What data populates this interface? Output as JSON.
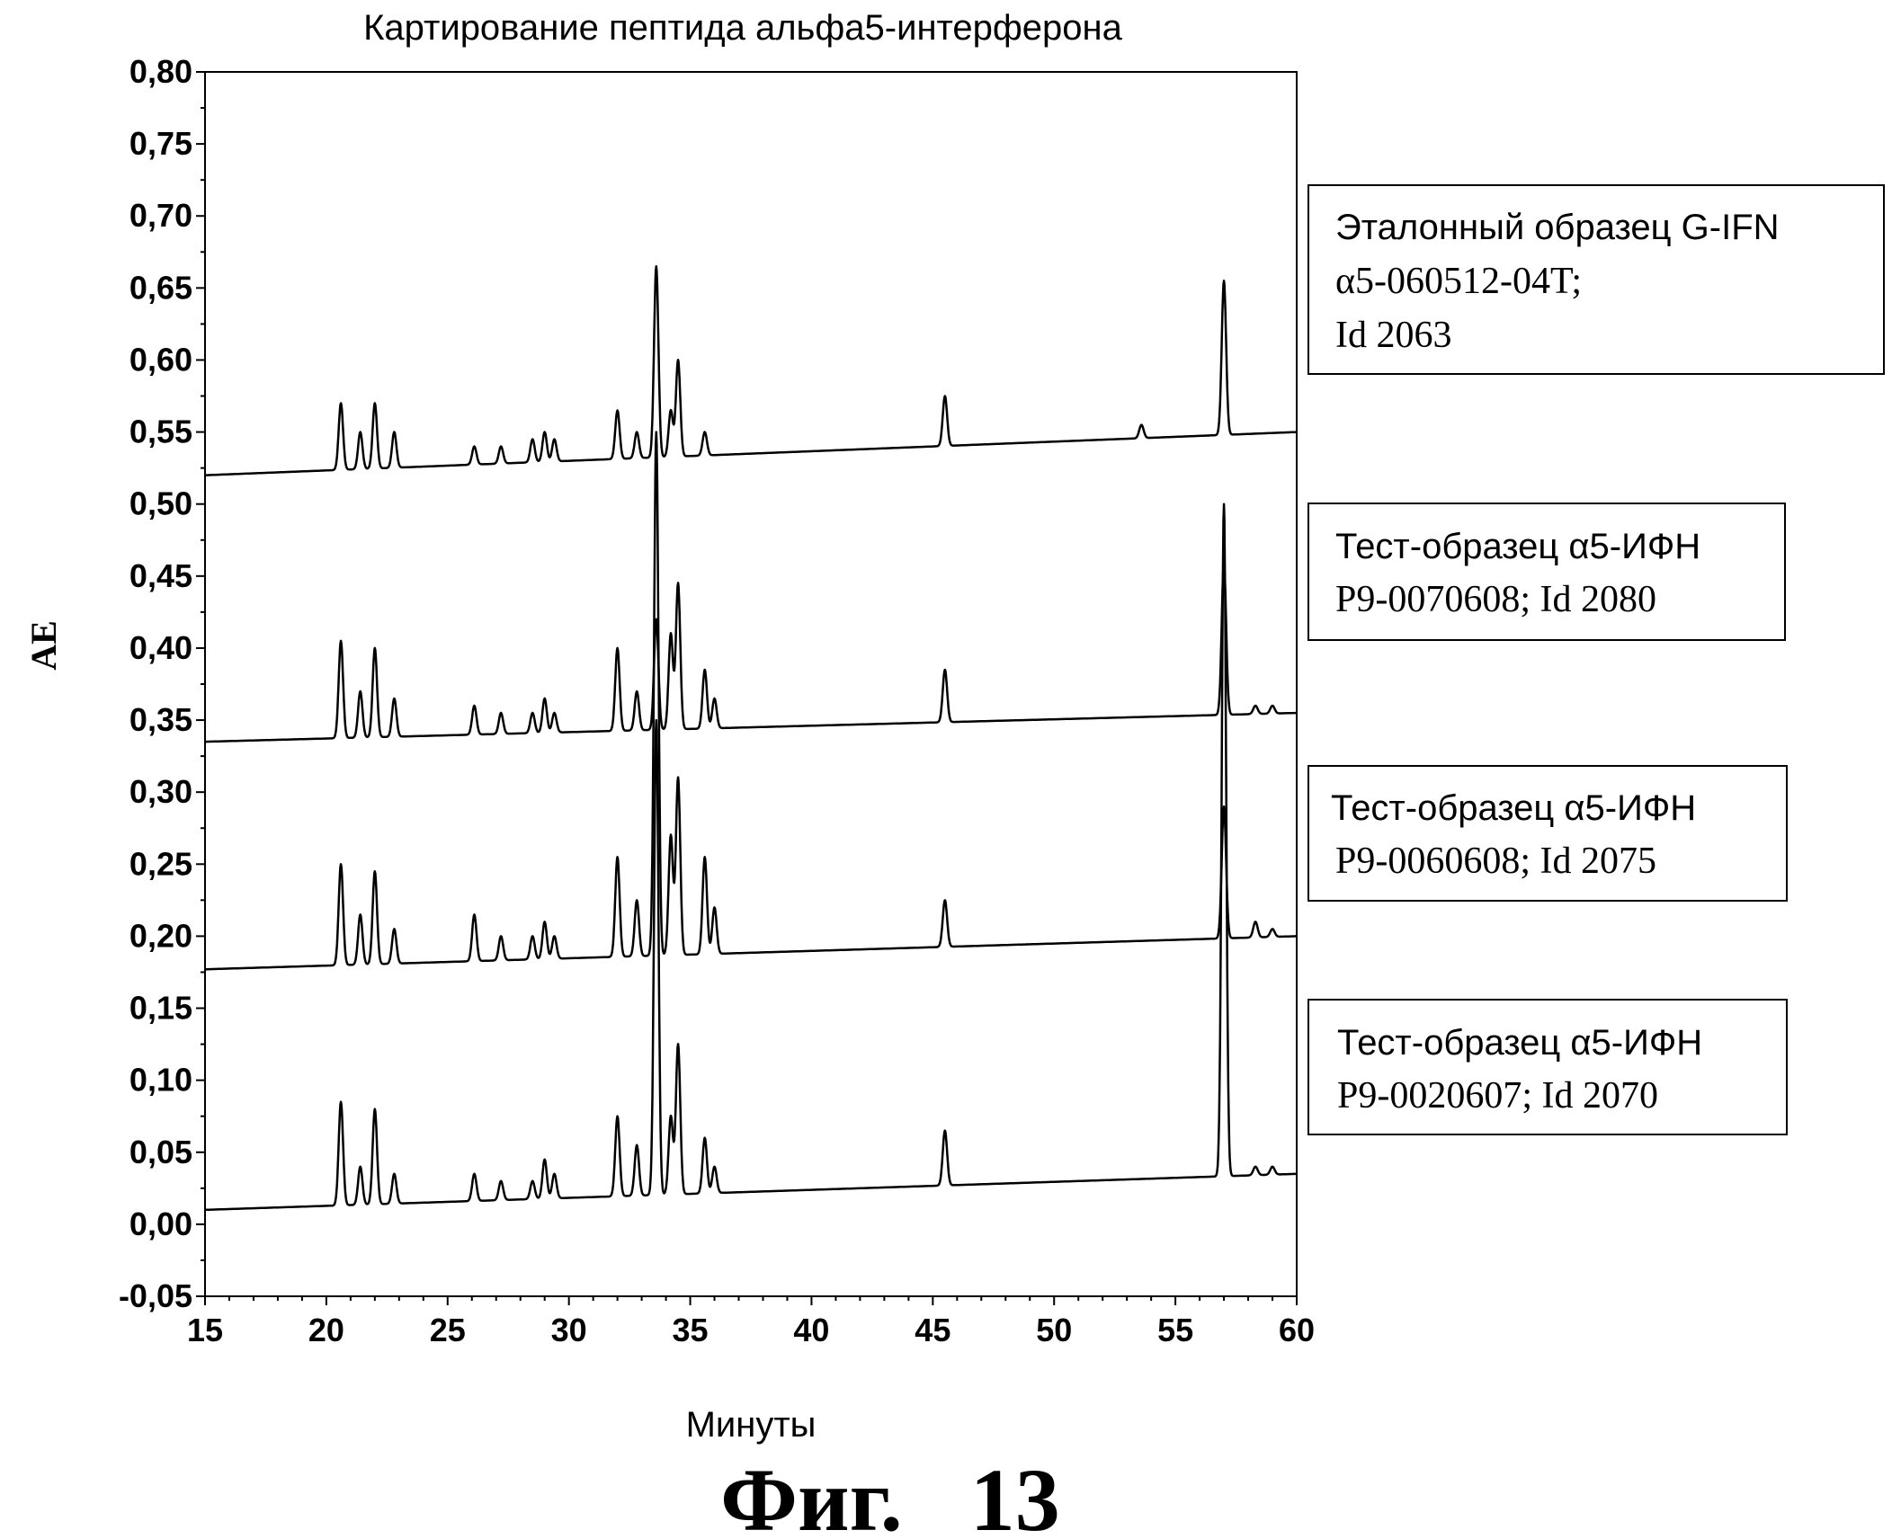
{
  "chart_data": {
    "type": "line",
    "title": "Картирование пептида альфа5-интерферона",
    "xlabel": "Минуты",
    "ylabel": "AE",
    "xlim": [
      15,
      60
    ],
    "ylim": [
      -0.05,
      0.8
    ],
    "x_ticks": [
      "15",
      "20",
      "25",
      "30",
      "35",
      "40",
      "45",
      "50",
      "55",
      "60"
    ],
    "y_ticks": [
      "-0,05",
      "0,00",
      "0,05",
      "0,10",
      "0,15",
      "0,20",
      "0,25",
      "0,30",
      "0,35",
      "0,40",
      "0,45",
      "0,50",
      "0,55",
      "0,60",
      "0,65",
      "0,70",
      "0,75",
      "0,80"
    ],
    "grid": false,
    "legend_placement": "right, one box per trace",
    "series": [
      {
        "name": "Эталонный образец G-IFN α5-060512-04T; Id 2063",
        "legend_lines": [
          "Эталонный образец G-IFN",
          "α5-060512-04T;",
          "Id 2063"
        ],
        "baseline_start": 0.52,
        "baseline_end": 0.55,
        "peaks": [
          [
            20.6,
            0.57
          ],
          [
            21.4,
            0.55
          ],
          [
            22.0,
            0.57
          ],
          [
            22.8,
            0.55
          ],
          [
            26.1,
            0.54
          ],
          [
            27.2,
            0.54
          ],
          [
            28.5,
            0.545
          ],
          [
            29.0,
            0.55
          ],
          [
            29.4,
            0.545
          ],
          [
            32.0,
            0.565
          ],
          [
            32.8,
            0.55
          ],
          [
            33.6,
            0.665
          ],
          [
            34.2,
            0.565
          ],
          [
            34.5,
            0.6
          ],
          [
            35.6,
            0.55
          ],
          [
            45.5,
            0.575
          ],
          [
            53.6,
            0.555
          ],
          [
            57.0,
            0.655
          ]
        ]
      },
      {
        "name": "Тест-образец α5-ИФН P9-0070608; Id 2080",
        "legend_lines": [
          "Тест-образец α5-ИФН",
          "P9-0070608; Id 2080"
        ],
        "baseline_start": 0.335,
        "baseline_end": 0.355,
        "peaks": [
          [
            20.6,
            0.405
          ],
          [
            21.4,
            0.37
          ],
          [
            22.0,
            0.4
          ],
          [
            22.8,
            0.365
          ],
          [
            26.1,
            0.36
          ],
          [
            27.2,
            0.355
          ],
          [
            28.5,
            0.355
          ],
          [
            29.0,
            0.365
          ],
          [
            29.4,
            0.355
          ],
          [
            32.0,
            0.4
          ],
          [
            32.8,
            0.37
          ],
          [
            33.6,
            0.42
          ],
          [
            34.2,
            0.41
          ],
          [
            34.5,
            0.445
          ],
          [
            35.6,
            0.385
          ],
          [
            36.0,
            0.365
          ],
          [
            45.5,
            0.385
          ],
          [
            57.0,
            0.46
          ],
          [
            58.3,
            0.36
          ],
          [
            59.0,
            0.36
          ]
        ]
      },
      {
        "name": "Тест-образец α5-ИФН P9-0060608; Id 2075",
        "legend_lines": [
          "Тест-образец α5-ИФН",
          "P9-0060608; Id 2075"
        ],
        "baseline_start": 0.177,
        "baseline_end": 0.2,
        "peaks": [
          [
            20.6,
            0.25
          ],
          [
            21.4,
            0.215
          ],
          [
            22.0,
            0.245
          ],
          [
            22.8,
            0.205
          ],
          [
            26.1,
            0.215
          ],
          [
            27.2,
            0.2
          ],
          [
            28.5,
            0.2
          ],
          [
            29.0,
            0.21
          ],
          [
            29.4,
            0.2
          ],
          [
            32.0,
            0.255
          ],
          [
            32.8,
            0.225
          ],
          [
            33.6,
            0.55
          ],
          [
            34.2,
            0.27
          ],
          [
            34.5,
            0.31
          ],
          [
            35.6,
            0.255
          ],
          [
            36.0,
            0.22
          ],
          [
            45.5,
            0.225
          ],
          [
            57.0,
            0.29
          ],
          [
            58.3,
            0.21
          ],
          [
            59.0,
            0.205
          ]
        ]
      },
      {
        "name": "Тест-образец α5-ИФН P9-0020607; Id 2070",
        "legend_lines": [
          "Тест-образец α5-ИФН",
          "P9-0020607; Id 2070"
        ],
        "baseline_start": 0.01,
        "baseline_end": 0.035,
        "peaks": [
          [
            20.6,
            0.085
          ],
          [
            21.4,
            0.04
          ],
          [
            22.0,
            0.08
          ],
          [
            22.8,
            0.035
          ],
          [
            26.1,
            0.035
          ],
          [
            27.2,
            0.03
          ],
          [
            28.5,
            0.03
          ],
          [
            29.0,
            0.045
          ],
          [
            29.4,
            0.035
          ],
          [
            32.0,
            0.075
          ],
          [
            32.8,
            0.055
          ],
          [
            33.6,
            0.35
          ],
          [
            34.2,
            0.075
          ],
          [
            34.5,
            0.125
          ],
          [
            35.6,
            0.06
          ],
          [
            36.0,
            0.04
          ],
          [
            45.5,
            0.065
          ],
          [
            57.0,
            0.5
          ],
          [
            58.3,
            0.04
          ],
          [
            59.0,
            0.04
          ]
        ]
      }
    ]
  },
  "figure_caption": "Фиг.   13"
}
